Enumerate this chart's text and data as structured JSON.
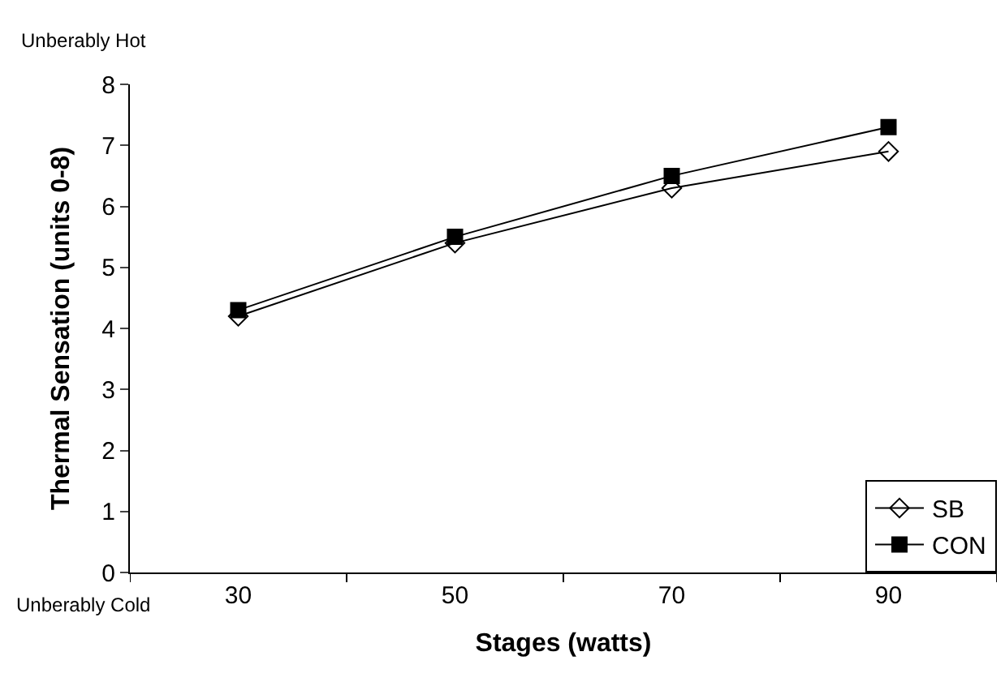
{
  "chart_data": {
    "type": "line",
    "xlabel": "Stages (watts)",
    "ylabel": "Thermal Sensation (units 0-8)",
    "categories": [
      "30",
      "50",
      "70",
      "90"
    ],
    "ylim": [
      0,
      8
    ],
    "yticks": [
      0,
      1,
      2,
      3,
      4,
      5,
      6,
      7,
      8
    ],
    "legend": "bottom right",
    "line_style": "solid",
    "series": [
      {
        "name": "SB",
        "color": "#000000",
        "marker": "diamond-open",
        "values": [
          4.2,
          5.4,
          6.3,
          6.9
        ]
      },
      {
        "name": "CON",
        "color": "#000000",
        "marker": "square",
        "values": [
          4.3,
          5.5,
          6.5,
          7.3
        ]
      }
    ],
    "annotations": [
      "Unberably Hot",
      "Unberably Cold"
    ]
  }
}
